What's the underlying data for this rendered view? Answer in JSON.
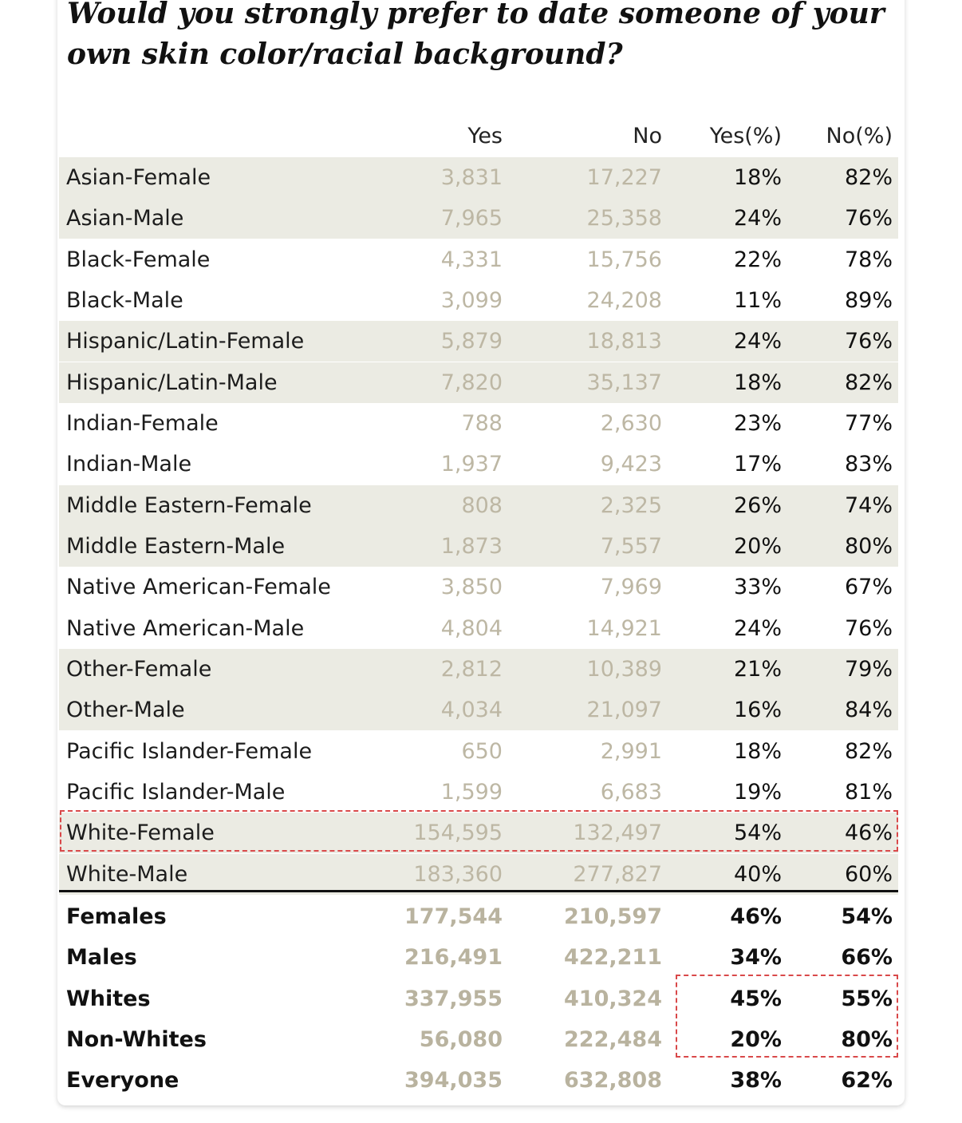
{
  "chart_data": {
    "type": "table",
    "title": "Would you strongly prefer to date someone of your own skin color/racial background?",
    "columns": [
      "",
      "Yes",
      "No",
      "Yes(%)",
      "No(%)"
    ],
    "rows": [
      {
        "label": "Asian-Female",
        "yes": "3,831",
        "no": "17,227",
        "yes_pct": "18%",
        "no_pct": "82%"
      },
      {
        "label": "Asian-Male",
        "yes": "7,965",
        "no": "25,358",
        "yes_pct": "24%",
        "no_pct": "76%"
      },
      {
        "label": "Black-Female",
        "yes": "4,331",
        "no": "15,756",
        "yes_pct": "22%",
        "no_pct": "78%"
      },
      {
        "label": "Black-Male",
        "yes": "3,099",
        "no": "24,208",
        "yes_pct": "11%",
        "no_pct": "89%"
      },
      {
        "label": "Hispanic/Latin-Female",
        "yes": "5,879",
        "no": "18,813",
        "yes_pct": "24%",
        "no_pct": "76%"
      },
      {
        "label": "Hispanic/Latin-Male",
        "yes": "7,820",
        "no": "35,137",
        "yes_pct": "18%",
        "no_pct": "82%"
      },
      {
        "label": "Indian-Female",
        "yes": "788",
        "no": "2,630",
        "yes_pct": "23%",
        "no_pct": "77%"
      },
      {
        "label": "Indian-Male",
        "yes": "1,937",
        "no": "9,423",
        "yes_pct": "17%",
        "no_pct": "83%"
      },
      {
        "label": "Middle Eastern-Female",
        "yes": "808",
        "no": "2,325",
        "yes_pct": "26%",
        "no_pct": "74%"
      },
      {
        "label": "Middle Eastern-Male",
        "yes": "1,873",
        "no": "7,557",
        "yes_pct": "20%",
        "no_pct": "80%"
      },
      {
        "label": "Native American-Female",
        "yes": "3,850",
        "no": "7,969",
        "yes_pct": "33%",
        "no_pct": "67%"
      },
      {
        "label": "Native American-Male",
        "yes": "4,804",
        "no": "14,921",
        "yes_pct": "24%",
        "no_pct": "76%"
      },
      {
        "label": "Other-Female",
        "yes": "2,812",
        "no": "10,389",
        "yes_pct": "21%",
        "no_pct": "79%"
      },
      {
        "label": "Other-Male",
        "yes": "4,034",
        "no": "21,097",
        "yes_pct": "16%",
        "no_pct": "84%"
      },
      {
        "label": "Pacific Islander-Female",
        "yes": "650",
        "no": "2,991",
        "yes_pct": "18%",
        "no_pct": "82%"
      },
      {
        "label": "Pacific Islander-Male",
        "yes": "1,599",
        "no": "6,683",
        "yes_pct": "19%",
        "no_pct": "81%"
      },
      {
        "label": "White-Female",
        "yes": "154,595",
        "no": "132,497",
        "yes_pct": "54%",
        "no_pct": "46%"
      },
      {
        "label": "White-Male",
        "yes": "183,360",
        "no": "277,827",
        "yes_pct": "40%",
        "no_pct": "60%"
      }
    ],
    "summary_rows": [
      {
        "label": "Females",
        "yes": "177,544",
        "no": "210,597",
        "yes_pct": "46%",
        "no_pct": "54%"
      },
      {
        "label": "Males",
        "yes": "216,491",
        "no": "422,211",
        "yes_pct": "34%",
        "no_pct": "66%"
      },
      {
        "label": "Whites",
        "yes": "337,955",
        "no": "410,324",
        "yes_pct": "45%",
        "no_pct": "55%"
      },
      {
        "label": "Non-Whites",
        "yes": "56,080",
        "no": "222,484",
        "yes_pct": "20%",
        "no_pct": "80%"
      },
      {
        "label": "Everyone",
        "yes": "394,035",
        "no": "632,808",
        "yes_pct": "38%",
        "no_pct": "62%"
      }
    ],
    "shading": "alternating bands of two rows",
    "highlighted": [
      "White-Female row",
      "Whites and Non-Whites percentage cells"
    ],
    "colors": {
      "band": "#ebebe3",
      "count_text": "#bdb7a4",
      "highlight": "#d9494a",
      "divider": "#111111"
    }
  }
}
